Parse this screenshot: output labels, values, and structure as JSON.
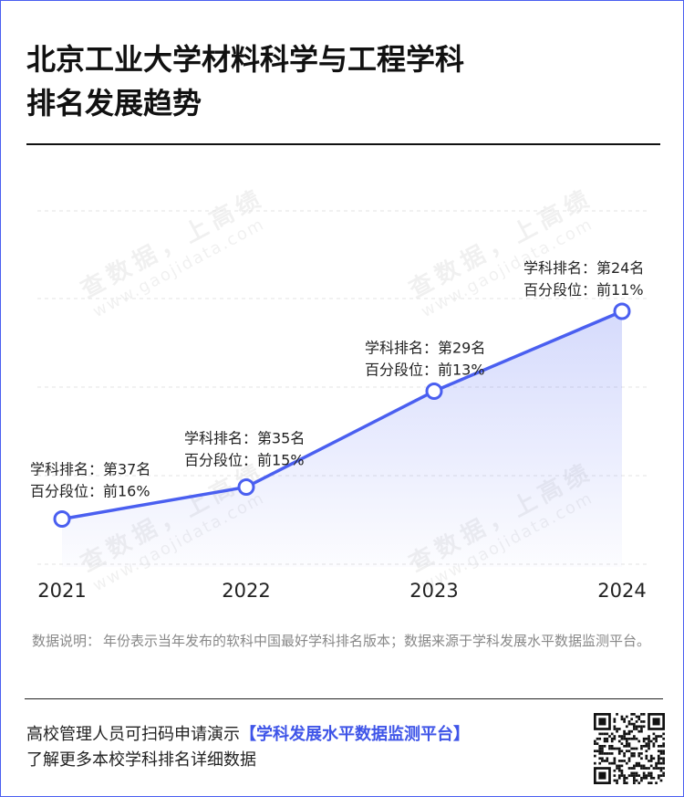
{
  "title": {
    "line1": "北京工业大学材料科学与工程学科",
    "line2": "排名发展趋势"
  },
  "watermark": {
    "text": "查数据，上高绩",
    "url": "www.gaojidata.com"
  },
  "chart_data": {
    "type": "line",
    "x": [
      "2021",
      "2022",
      "2023",
      "2024"
    ],
    "series": [
      {
        "values": [
          37,
          35,
          29,
          24
        ]
      }
    ],
    "y_reversed": true,
    "ylim": [
      40,
      20
    ],
    "grid": true,
    "line_color": "#4a5ff0",
    "annotations": [
      {
        "line1": "学科排名：第37名",
        "line2": "百分段位：前16%"
      },
      {
        "line1": "学科排名：第35名",
        "line2": "百分段位：前15%"
      },
      {
        "line1": "学科排名：第29名",
        "line2": "百分段位：前13%"
      },
      {
        "line1": "学科排名：第24名",
        "line2": "百分段位：前11%"
      }
    ]
  },
  "note": {
    "label": "数据说明：",
    "text": "年份表示当年发布的软科中国最好学科排名版本；数据来源于学科发展水平数据监测平台。"
  },
  "footer": {
    "prefix": "高校管理人员可扫码申请演示",
    "highlight": "【学科发展水平数据监测平台】",
    "line2": "了解更多本校学科排名详细数据"
  },
  "colors": {
    "accent": "#4a5ff0",
    "title": "#111111"
  }
}
